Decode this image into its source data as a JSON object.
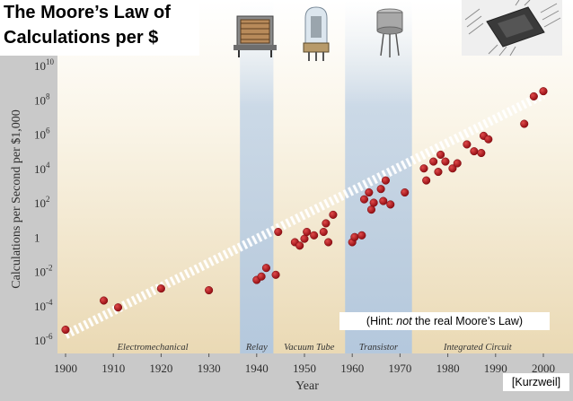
{
  "slide": {
    "title_line1": "The Moore’s Law of",
    "title_line2": "Calculations per $",
    "hint_prefix": "(Hint: ",
    "hint_emphasis": "not",
    "hint_suffix": " the real Moore’s Law)",
    "credit": "[Kurzweil]"
  },
  "images": [
    {
      "name": "relay-icon",
      "era": "Relay"
    },
    {
      "name": "vacuum-tube-icon",
      "era": "Vacuum Tube"
    },
    {
      "name": "transistor-icon",
      "era": "Transistor"
    },
    {
      "name": "integrated-circuit-icon",
      "era": "Integrated Circuit"
    }
  ],
  "colors": {
    "point": "#b5121b",
    "trend": "#ffffff",
    "band": "#c3d4e6",
    "plot_bg": "#f2ead6"
  },
  "chart_data": {
    "type": "scatter",
    "title": "",
    "xlabel": "Year",
    "ylabel": "Calculations per Second per $1,000",
    "xlim": [
      1900,
      2000
    ],
    "ylim_log10": [
      -6,
      10
    ],
    "y_scale": "log",
    "x_ticks": [
      "1900",
      "1910",
      "1920",
      "1930",
      "1940",
      "1950",
      "1960",
      "1970",
      "1980",
      "1990",
      "2000"
    ],
    "y_ticks": [
      {
        "exp": 10,
        "label": "10",
        "sup": "10"
      },
      {
        "exp": 8,
        "label": "10",
        "sup": "8"
      },
      {
        "exp": 6,
        "label": "10",
        "sup": "6"
      },
      {
        "exp": 4,
        "label": "10",
        "sup": "4"
      },
      {
        "exp": 2,
        "label": "10",
        "sup": "2"
      },
      {
        "exp": 0,
        "label": "1",
        "sup": ""
      },
      {
        "exp": -2,
        "label": "10",
        "sup": "-2"
      },
      {
        "exp": -4,
        "label": "10",
        "sup": "-4"
      },
      {
        "exp": -6,
        "label": "10",
        "sup": "-6"
      }
    ],
    "eras": [
      {
        "label": "Electromechanical",
        "start": 1900,
        "end": 1936.5,
        "band": false
      },
      {
        "label": "Relay",
        "start": 1936.5,
        "end": 1943.5,
        "band": true
      },
      {
        "label": "Vacuum Tube",
        "start": 1943.5,
        "end": 1958.5,
        "band": false
      },
      {
        "label": "Transistor",
        "start": 1958.5,
        "end": 1972.5,
        "band": true
      },
      {
        "label": "Integrated Circuit",
        "start": 1972.5,
        "end": 2001,
        "band": false
      }
    ],
    "trend": {
      "from": [
        1900,
        -5.7
      ],
      "to": [
        2000,
        8.3
      ]
    },
    "points": [
      [
        1900,
        -5.4
      ],
      [
        1908,
        -3.7
      ],
      [
        1911,
        -4.1
      ],
      [
        1920,
        -3.0
      ],
      [
        1930,
        -3.1
      ],
      [
        1940,
        -2.5
      ],
      [
        1941,
        -2.3
      ],
      [
        1942,
        -1.8
      ],
      [
        1944,
        -2.2
      ],
      [
        1944.5,
        0.3
      ],
      [
        1948,
        -0.3
      ],
      [
        1949,
        -0.5
      ],
      [
        1950,
        -0.1
      ],
      [
        1950.5,
        0.3
      ],
      [
        1952,
        0.1
      ],
      [
        1954,
        0.3
      ],
      [
        1954.5,
        0.8
      ],
      [
        1955,
        -0.3
      ],
      [
        1956,
        1.3
      ],
      [
        1960,
        -0.3
      ],
      [
        1960.5,
        0.0
      ],
      [
        1962,
        0.1
      ],
      [
        1962.5,
        2.2
      ],
      [
        1963.5,
        2.6
      ],
      [
        1964,
        1.6
      ],
      [
        1964.5,
        2.0
      ],
      [
        1966,
        2.8
      ],
      [
        1966.5,
        2.1
      ],
      [
        1967,
        3.3
      ],
      [
        1968,
        1.9
      ],
      [
        1971,
        2.6
      ],
      [
        1975,
        4.0
      ],
      [
        1975.5,
        3.3
      ],
      [
        1977,
        4.4
      ],
      [
        1978,
        3.8
      ],
      [
        1978.5,
        4.8
      ],
      [
        1979.5,
        4.4
      ],
      [
        1981,
        4.0
      ],
      [
        1982,
        4.3
      ],
      [
        1984,
        5.4
      ],
      [
        1985.5,
        5.0
      ],
      [
        1987,
        4.9
      ],
      [
        1987.5,
        5.9
      ],
      [
        1988.5,
        5.7
      ],
      [
        1996,
        6.6
      ],
      [
        1998,
        8.2
      ],
      [
        2000,
        8.5
      ]
    ]
  }
}
